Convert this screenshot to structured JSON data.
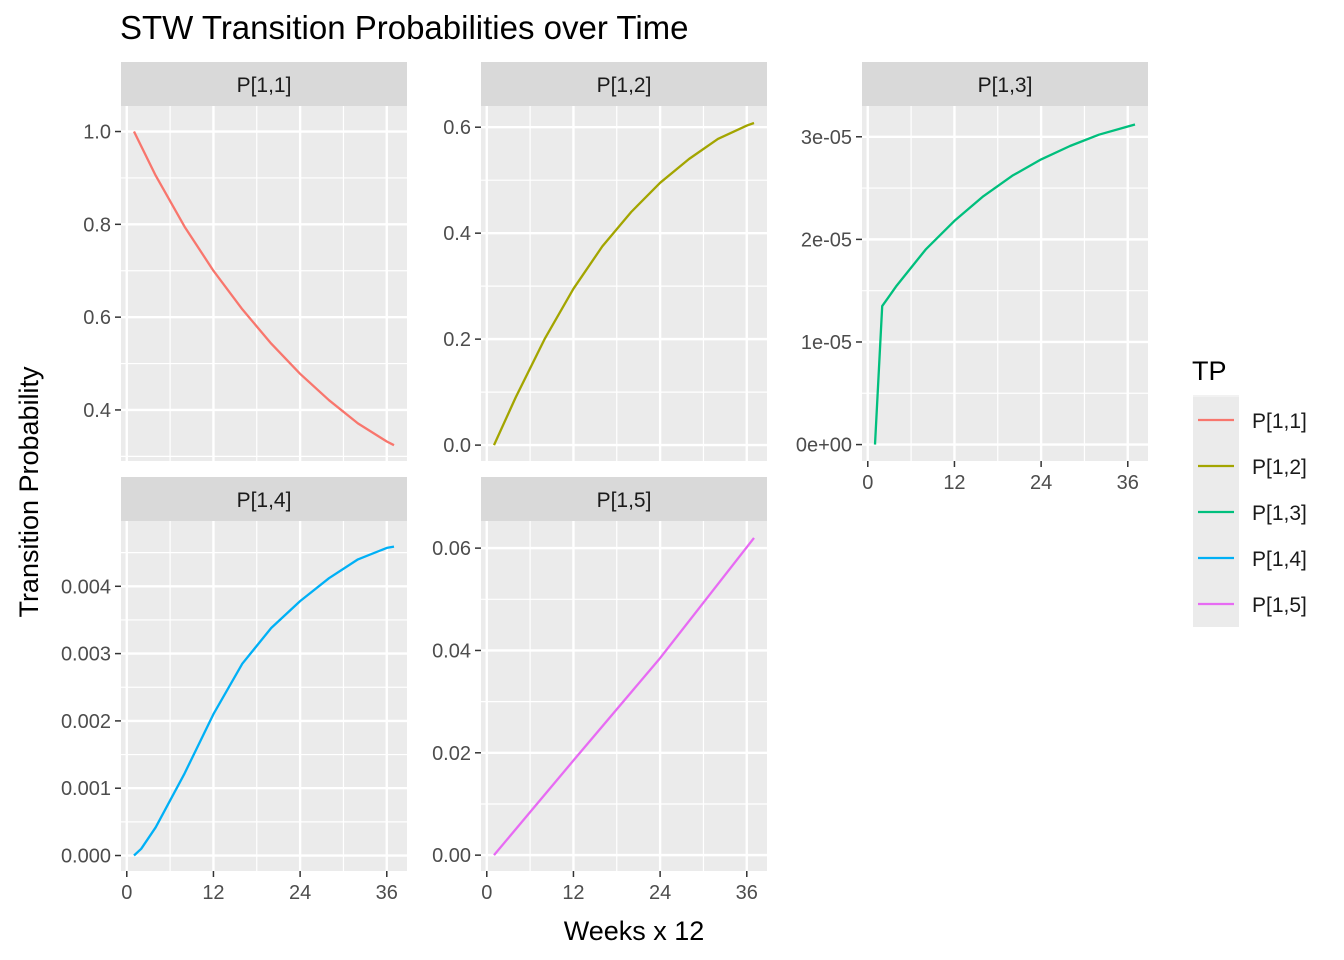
{
  "chart_data": {
    "type": "line",
    "title": "STW Transition Probabilities over Time",
    "xlabel": "Weeks x 12",
    "ylabel": "Transition Probability",
    "grid": true,
    "legend": {
      "title": "TP",
      "placement": "right",
      "entries": [
        {
          "label": "P[1,1]",
          "color": "#F8766D"
        },
        {
          "label": "P[1,2]",
          "color": "#A3A500"
        },
        {
          "label": "P[1,3]",
          "color": "#00BF7D"
        },
        {
          "label": "P[1,4]",
          "color": "#00B0F6"
        },
        {
          "label": "P[1,5]",
          "color": "#E76BF3"
        }
      ]
    },
    "x_ticks": [
      "0",
      "12",
      "24",
      "36"
    ],
    "xlim": [
      -0.8,
      38.8
    ],
    "panels": [
      {
        "label": "P[1,1]",
        "color": "#F8766D",
        "ylim": [
          0.29,
          1.055
        ],
        "y_ticks": [
          {
            "value": 0.4,
            "label": "0.4"
          },
          {
            "value": 0.6,
            "label": "0.6"
          },
          {
            "value": 0.8,
            "label": "0.8"
          },
          {
            "value": 1.0,
            "label": "1.0"
          }
        ],
        "x": [
          1,
          4,
          8,
          12,
          16,
          20,
          24,
          28,
          32,
          36,
          37
        ],
        "y": [
          1.0,
          0.905,
          0.795,
          0.7,
          0.617,
          0.543,
          0.478,
          0.421,
          0.371,
          0.332,
          0.324
        ]
      },
      {
        "label": "P[1,2]",
        "color": "#A3A500",
        "ylim": [
          -0.03,
          0.64
        ],
        "y_ticks": [
          {
            "value": 0.0,
            "label": "0.0"
          },
          {
            "value": 0.2,
            "label": "0.2"
          },
          {
            "value": 0.4,
            "label": "0.4"
          },
          {
            "value": 0.6,
            "label": "0.6"
          }
        ],
        "x": [
          1,
          4,
          8,
          12,
          16,
          20,
          24,
          28,
          32,
          36,
          37
        ],
        "y": [
          0.0,
          0.09,
          0.2,
          0.295,
          0.375,
          0.44,
          0.495,
          0.54,
          0.578,
          0.603,
          0.608
        ]
      },
      {
        "label": "P[1,3]",
        "color": "#00BF7D",
        "ylim": [
          -1.6e-06,
          3.3e-05
        ],
        "y_ticks": [
          {
            "value": 0,
            "label": "0e+00"
          },
          {
            "value": 1e-05,
            "label": "1e-05"
          },
          {
            "value": 2e-05,
            "label": "2e-05"
          },
          {
            "value": 3e-05,
            "label": "3e-05"
          }
        ],
        "x": [
          1,
          2,
          4,
          8,
          12,
          16,
          20,
          24,
          28,
          32,
          36,
          37
        ],
        "y": [
          0,
          1.35e-05,
          1.55e-05,
          1.9e-05,
          2.18e-05,
          2.42e-05,
          2.62e-05,
          2.78e-05,
          2.91e-05,
          3.02e-05,
          3.1e-05,
          3.12e-05
        ]
      },
      {
        "label": "P[1,4]",
        "color": "#00B0F6",
        "ylim": [
          -0.00023,
          0.00497
        ],
        "y_ticks": [
          {
            "value": 0.0,
            "label": "0.000"
          },
          {
            "value": 0.001,
            "label": "0.001"
          },
          {
            "value": 0.002,
            "label": "0.002"
          },
          {
            "value": 0.003,
            "label": "0.003"
          },
          {
            "value": 0.004,
            "label": "0.004"
          }
        ],
        "x": [
          1,
          2,
          4,
          8,
          12,
          16,
          20,
          24,
          28,
          32,
          36,
          37
        ],
        "y": [
          0.0,
          0.0001,
          0.00042,
          0.00122,
          0.0021,
          0.00285,
          0.00338,
          0.00378,
          0.00412,
          0.0044,
          0.00457,
          0.00459
        ]
      },
      {
        "label": "P[1,5]",
        "color": "#E76BF3",
        "ylim": [
          -0.0031,
          0.0653
        ],
        "y_ticks": [
          {
            "value": 0.0,
            "label": "0.00"
          },
          {
            "value": 0.02,
            "label": "0.02"
          },
          {
            "value": 0.04,
            "label": "0.04"
          },
          {
            "value": 0.06,
            "label": "0.06"
          }
        ],
        "x": [
          1,
          12,
          24,
          37
        ],
        "y": [
          0.0,
          0.0185,
          0.0385,
          0.062
        ]
      }
    ]
  }
}
